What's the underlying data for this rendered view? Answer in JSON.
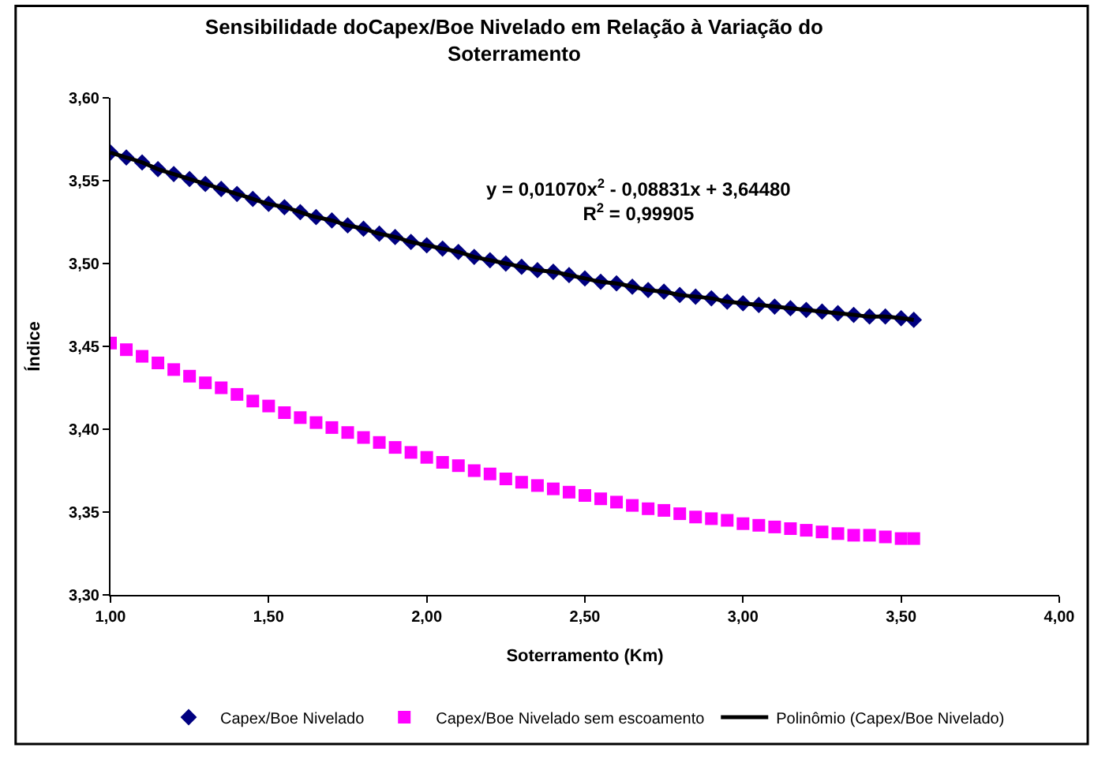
{
  "chart_data": {
    "type": "scatter",
    "title": "Sensibilidade doCapex/Boe Nivelado em Relação à Variação do\nSoterramento",
    "xlabel": "Soterramento (Km)",
    "ylabel": "Índice",
    "x": [
      1.0,
      1.05,
      1.1,
      1.15,
      1.2,
      1.25,
      1.3,
      1.35,
      1.4,
      1.45,
      1.5,
      1.55,
      1.6,
      1.65,
      1.7,
      1.75,
      1.8,
      1.85,
      1.9,
      1.95,
      2.0,
      2.05,
      2.1,
      2.15,
      2.2,
      2.25,
      2.3,
      2.35,
      2.4,
      2.45,
      2.5,
      2.55,
      2.6,
      2.65,
      2.7,
      2.75,
      2.8,
      2.85,
      2.9,
      2.95,
      3.0,
      3.05,
      3.1,
      3.15,
      3.2,
      3.25,
      3.3,
      3.35,
      3.4,
      3.45,
      3.5,
      3.54
    ],
    "series": [
      {
        "name": "Capex/Boe Nivelado",
        "color": "#000080",
        "marker": "diamond",
        "values": [
          3.567,
          3.564,
          3.561,
          3.557,
          3.554,
          3.551,
          3.548,
          3.545,
          3.542,
          3.539,
          3.536,
          3.534,
          3.531,
          3.528,
          3.526,
          3.523,
          3.521,
          3.518,
          3.516,
          3.513,
          3.511,
          3.509,
          3.507,
          3.504,
          3.502,
          3.5,
          3.498,
          3.496,
          3.495,
          3.493,
          3.491,
          3.489,
          3.488,
          3.486,
          3.484,
          3.483,
          3.481,
          3.48,
          3.479,
          3.477,
          3.476,
          3.475,
          3.474,
          3.473,
          3.472,
          3.471,
          3.47,
          3.469,
          3.468,
          3.468,
          3.467,
          3.466
        ]
      },
      {
        "name": "Capex/Boe Nivelado sem escoamento",
        "color": "#ff00ff",
        "marker": "square",
        "values": [
          3.452,
          3.448,
          3.444,
          3.44,
          3.436,
          3.432,
          3.428,
          3.425,
          3.421,
          3.417,
          3.414,
          3.41,
          3.407,
          3.404,
          3.401,
          3.398,
          3.395,
          3.392,
          3.389,
          3.386,
          3.383,
          3.38,
          3.378,
          3.375,
          3.373,
          3.37,
          3.368,
          3.366,
          3.364,
          3.362,
          3.36,
          3.358,
          3.356,
          3.354,
          3.352,
          3.351,
          3.349,
          3.347,
          3.346,
          3.345,
          3.343,
          3.342,
          3.341,
          3.34,
          3.339,
          3.338,
          3.337,
          3.336,
          3.336,
          3.335,
          3.334,
          3.334
        ]
      },
      {
        "name": "Polinômio (Capex/Boe Nivelado)",
        "type": "line",
        "color": "#000000",
        "line_style": "solid",
        "values": [
          3.567,
          3.564,
          3.561,
          3.557,
          3.554,
          3.551,
          3.548,
          3.545,
          3.542,
          3.539,
          3.536,
          3.534,
          3.531,
          3.528,
          3.526,
          3.523,
          3.521,
          3.518,
          3.516,
          3.513,
          3.511,
          3.509,
          3.507,
          3.504,
          3.502,
          3.5,
          3.498,
          3.496,
          3.495,
          3.493,
          3.491,
          3.489,
          3.488,
          3.486,
          3.484,
          3.483,
          3.481,
          3.48,
          3.479,
          3.477,
          3.476,
          3.475,
          3.474,
          3.473,
          3.472,
          3.471,
          3.47,
          3.469,
          3.468,
          3.468,
          3.467,
          3.466
        ]
      }
    ],
    "annotations": [
      "y = 0,01070x$^{2}$ - 0,08831x + 3,64480\nR$^{2}$ = 0,99905"
    ],
    "xlim": [
      1.0,
      4.0
    ],
    "xticks": [
      {
        "value": 1.0,
        "label": "1,00"
      },
      {
        "value": 1.5,
        "label": "1,50"
      },
      {
        "value": 2.0,
        "label": "2,00"
      },
      {
        "value": 2.5,
        "label": "2,50"
      },
      {
        "value": 3.0,
        "label": "3,00"
      },
      {
        "value": 3.5,
        "label": "3,50"
      },
      {
        "value": 4.0,
        "label": "4,00"
      }
    ],
    "ylim": [
      3.3,
      3.6
    ],
    "yticks": [
      {
        "value": 3.3,
        "label": "3,30"
      },
      {
        "value": 3.35,
        "label": "3,35"
      },
      {
        "value": 3.4,
        "label": "3,40"
      },
      {
        "value": 3.45,
        "label": "3,45"
      },
      {
        "value": 3.5,
        "label": "3,50"
      },
      {
        "value": 3.55,
        "label": "3,55"
      },
      {
        "value": 3.6,
        "label": "3,60"
      }
    ],
    "legend": "bottom"
  }
}
